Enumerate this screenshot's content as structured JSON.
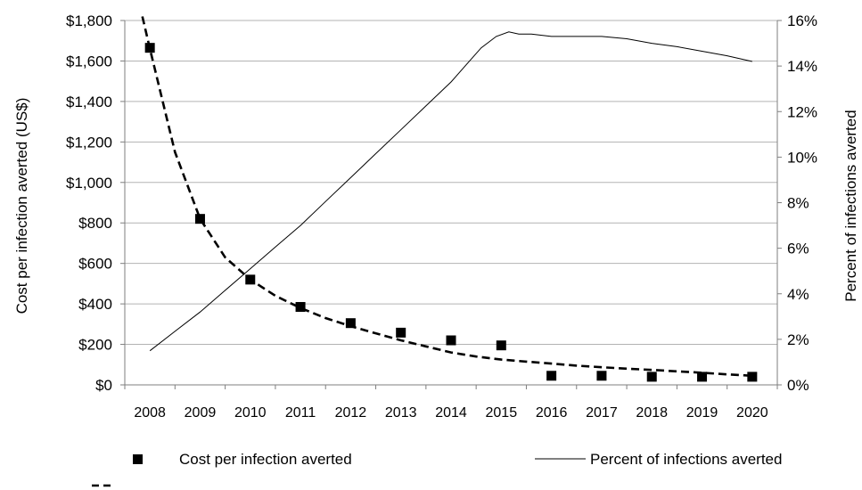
{
  "chart_data": {
    "type": "line",
    "categories": [
      "2008",
      "2009",
      "2010",
      "2011",
      "2012",
      "2013",
      "2014",
      "2015",
      "2016",
      "2017",
      "2018",
      "2019",
      "2020"
    ],
    "y_left": {
      "label": "Cost per infection averted (US$)",
      "ylim": [
        0,
        1800
      ],
      "ticks": [
        0,
        200,
        400,
        600,
        800,
        1000,
        1200,
        1400,
        1600,
        1800
      ],
      "tick_labels": [
        "$0",
        "$200",
        "$400",
        "$600",
        "$800",
        "$1,000",
        "$1,200",
        "$1,400",
        "$1,600",
        "$1,800"
      ]
    },
    "y_right": {
      "label": "Percent of infections averted",
      "ylim": [
        0,
        16
      ],
      "ticks": [
        0,
        2,
        4,
        6,
        8,
        10,
        12,
        14,
        16
      ],
      "tick_labels": [
        "0%",
        "2%",
        "4%",
        "6%",
        "8%",
        "10%",
        "12%",
        "14%",
        "16%"
      ]
    },
    "series": [
      {
        "name": "Cost per infection averted",
        "type": "scatter",
        "axis": "left",
        "marker": "square",
        "values": [
          1665,
          820,
          520,
          385,
          305,
          258,
          220,
          195,
          45,
          45,
          40,
          40,
          40
        ]
      },
      {
        "type": "line",
        "axis": "left",
        "style": "dashed",
        "x": [
          2007.85,
          2008,
          2008.5,
          2009,
          2009.5,
          2010,
          2010.5,
          2011,
          2011.5,
          2012,
          2012.5,
          2013,
          2013.5,
          2014,
          2014.5,
          2015,
          2015.5,
          2016,
          2016.5,
          2017,
          2017.5,
          2018,
          2018.5,
          2019,
          2019.5,
          2020
        ],
        "y": [
          1820,
          1660,
          1150,
          820,
          630,
          520,
          440,
          380,
          330,
          290,
          255,
          220,
          190,
          160,
          140,
          125,
          115,
          105,
          95,
          87,
          80,
          74,
          67,
          60,
          52,
          45
        ]
      },
      {
        "name": "Percent of infections averted",
        "type": "line",
        "axis": "right",
        "style": "solid",
        "x": [
          2008,
          2008.5,
          2009,
          2009.5,
          2010,
          2010.5,
          2011,
          2011.5,
          2012,
          2012.5,
          2013,
          2013.5,
          2014,
          2014.3,
          2014.6,
          2014.9,
          2015.15,
          2015.35,
          2015.6,
          2016,
          2016.5,
          2017,
          2017.5,
          2018,
          2018.5,
          2019,
          2019.5,
          2020
        ],
        "y": [
          1.5,
          2.35,
          3.2,
          4.15,
          5.1,
          6.05,
          7.0,
          8.05,
          9.1,
          10.15,
          11.2,
          12.25,
          13.3,
          14.05,
          14.8,
          15.3,
          15.5,
          15.4,
          15.4,
          15.3,
          15.3,
          15.3,
          15.2,
          15.0,
          14.85,
          14.65,
          14.45,
          14.2
        ]
      }
    ],
    "legend": {
      "position": "bottom",
      "items": [
        "Cost per infection averted",
        "Percent of infections averted"
      ]
    },
    "grid": "horizontal"
  }
}
